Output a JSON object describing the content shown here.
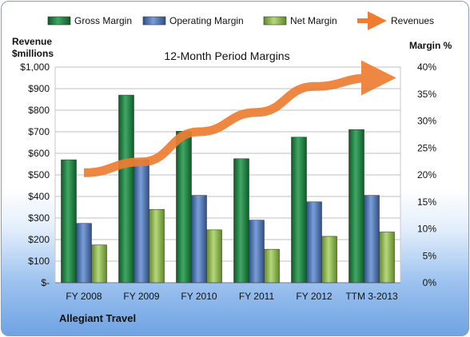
{
  "chart_data": {
    "type": "bar",
    "title": "12-Month Period Margins",
    "company": "Allegiant Travel",
    "categories": [
      "FY 2008",
      "FY 2009",
      "FY 2010",
      "FY 2011",
      "FY 2012",
      "TTM 3-2013"
    ],
    "series": [
      {
        "name": "Gross Margin",
        "axis": "right",
        "color": "#1e7a3c",
        "values": [
          22.8,
          34.8,
          28.1,
          23.0,
          27.0,
          28.4
        ]
      },
      {
        "name": "Operating Margin",
        "axis": "right",
        "color": "#4a6fad",
        "values": [
          11.0,
          22.8,
          16.2,
          11.6,
          15.0,
          16.2
        ]
      },
      {
        "name": "Net Margin",
        "axis": "right",
        "color": "#8db24f",
        "values": [
          7.0,
          13.6,
          9.8,
          6.2,
          8.6,
          9.4
        ]
      },
      {
        "name": "Revenues",
        "axis": "left",
        "type": "line",
        "color": "#ed7d31",
        "values": [
          510,
          560,
          700,
          790,
          910,
          950
        ]
      }
    ],
    "y_left": {
      "label_line1": "Revenue",
      "label_line2": "$millions",
      "range": [
        0,
        1000
      ],
      "ticks": [
        "$-",
        "$100",
        "$200",
        "$300",
        "$400",
        "$500",
        "$600",
        "$700",
        "$800",
        "$900",
        "$1,000"
      ]
    },
    "y_right": {
      "label": "Margin %",
      "range": [
        0,
        40
      ],
      "ticks": [
        "0%",
        "5%",
        "10%",
        "15%",
        "20%",
        "25%",
        "30%",
        "35%",
        "40%"
      ]
    },
    "grid": true,
    "legend_position": "top"
  }
}
